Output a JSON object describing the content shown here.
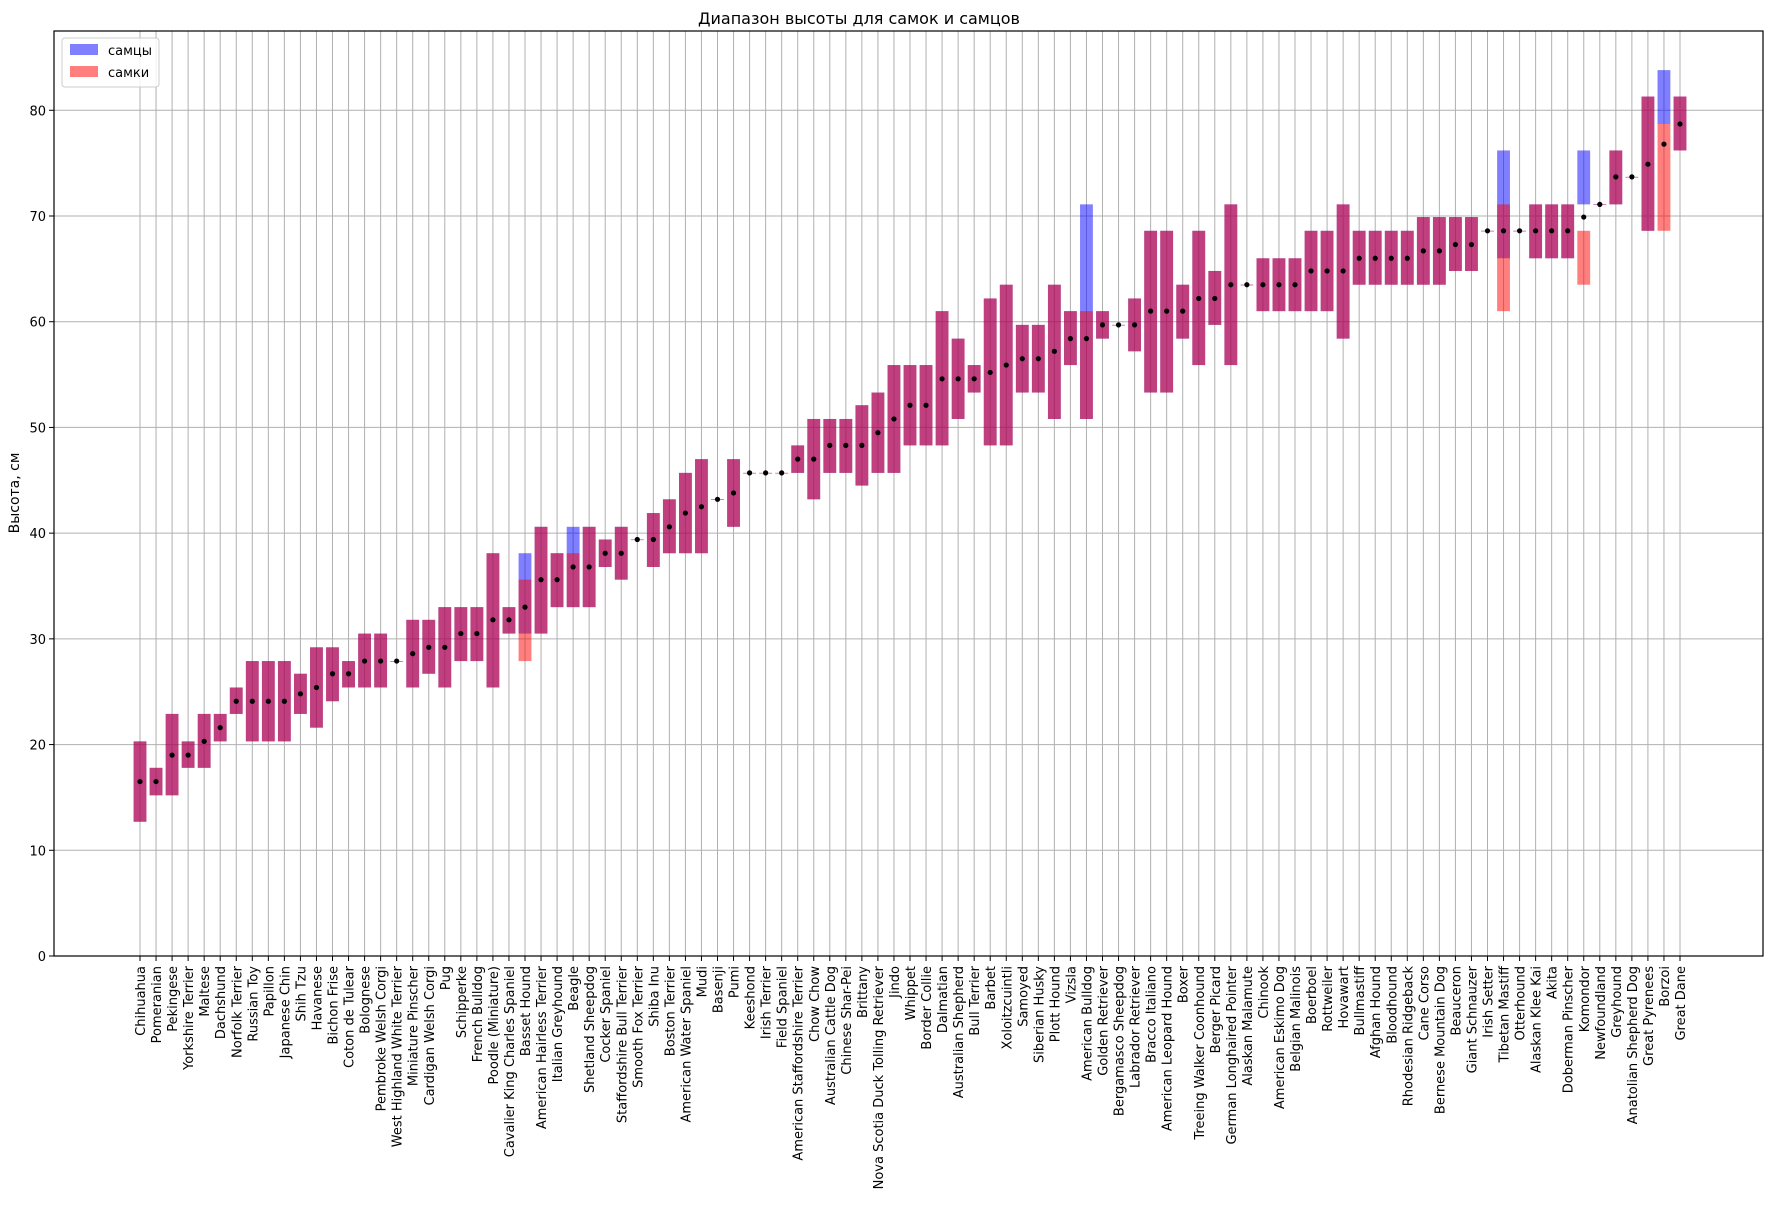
{
  "chart_data": {
    "type": "bar",
    "title": "Диапазон высоты для самок и самцов",
    "xlabel": "",
    "ylabel": "Высота, см",
    "ylim": [
      0,
      87.5
    ],
    "yticks": [
      0,
      10,
      20,
      30,
      40,
      50,
      60,
      70,
      80
    ],
    "grid": true,
    "legend_position": "top-left",
    "colors": {
      "males": "#0000ff",
      "females": "#ff0000",
      "overlap": "#b3306a",
      "mean_dot": "#000000"
    },
    "legend": [
      {
        "key": "males",
        "label": "самцы"
      },
      {
        "key": "females",
        "label": "самки"
      }
    ],
    "categories": [
      "Chihuahua",
      "Pomeranian",
      "Pekingese",
      "Yorkshire Terrier",
      "Maltese",
      "Dachshund",
      "Norfolk Terrier",
      "Russian Toy",
      "Papillon",
      "Japanese Chin",
      "Shih Tzu",
      "Havanese",
      "Bichon Frise",
      "Coton de Tulear",
      "Bolognese",
      "Pembroke Welsh Corgi",
      "West Highland White Terrier",
      "Miniature Pinscher",
      "Cardigan Welsh Corgi",
      "Pug",
      "Schipperke",
      "French Bulldog",
      "Poodle (Miniature)",
      "Cavalier King Charles Spaniel",
      "Basset Hound",
      "American Hairless Terrier",
      "Italian Greyhound",
      "Beagle",
      "Shetland Sheepdog",
      "Cocker Spaniel",
      "Staffordshire Bull Terrier",
      "Smooth Fox Terrier",
      "Shiba Inu",
      "Boston Terrier",
      "American Water Spaniel",
      "Mudi",
      "Basenji",
      "Pumi",
      "Keeshond",
      "Irish Terrier",
      "Field Spaniel",
      "American Staffordshire Terrier",
      "Chow Chow",
      "Australian Cattle Dog",
      "Chinese Shar-Pei",
      "Brittany",
      "Nova Scotia Duck Tolling Retriever",
      "Jindo",
      "Whippet",
      "Border Collie",
      "Dalmatian",
      "Australian Shepherd",
      "Bull Terrier",
      "Barbet",
      "Xoloitzcuintli",
      "Samoyed",
      "Siberian Husky",
      "Plott Hound",
      "Vizsla",
      "American Bulldog",
      "Golden Retriever",
      "Bergamasco Sheepdog",
      "Labrador Retriever",
      "Bracco Italiano",
      "American Leopard Hound",
      "Boxer",
      "Treeing Walker Coonhound",
      "Berger Picard",
      "German Longhaired Pointer",
      "Alaskan Malamute",
      "Chinook",
      "American Eskimo Dog",
      "Belgian Malinois",
      "Boerboel",
      "Rottweiler",
      "Hovawart",
      "Bullmastiff",
      "Afghan Hound",
      "Bloodhound",
      "Rhodesian Ridgeback",
      "Cane Corso",
      "Bernese Mountain Dog",
      "Beauceron",
      "Giant Schnauzer",
      "Irish Setter",
      "Tibetan Mastiff",
      "Otterhound",
      "Alaskan Klee Kai",
      "Akita",
      "Doberman Pinscher",
      "Komondor",
      "Newfoundland",
      "Greyhound",
      "Anatolian Shepherd Dog",
      "Great Pyrenees",
      "Borzoi",
      "Great Dane"
    ],
    "series": [
      {
        "name": "самцы",
        "ranges": [
          [
            12.7,
            20.3
          ],
          [
            15.2,
            17.8
          ],
          [
            15.2,
            22.9
          ],
          [
            17.8,
            20.3
          ],
          [
            17.8,
            22.9
          ],
          [
            20.3,
            22.9
          ],
          [
            22.9,
            25.4
          ],
          [
            20.3,
            27.9
          ],
          [
            20.3,
            27.9
          ],
          [
            20.3,
            27.9
          ],
          [
            22.9,
            26.7
          ],
          [
            21.6,
            29.2
          ],
          [
            24.1,
            29.2
          ],
          [
            25.4,
            27.9
          ],
          [
            25.4,
            30.5
          ],
          [
            25.4,
            30.5
          ],
          [
            27.9,
            27.9
          ],
          [
            25.4,
            31.8
          ],
          [
            26.7,
            31.8
          ],
          [
            25.4,
            33.0
          ],
          [
            27.9,
            33.0
          ],
          [
            27.9,
            33.0
          ],
          [
            25.4,
            38.1
          ],
          [
            30.5,
            33.0
          ],
          [
            30.5,
            38.1
          ],
          [
            30.5,
            40.6
          ],
          [
            33.0,
            38.1
          ],
          [
            33.0,
            40.6
          ],
          [
            33.0,
            40.6
          ],
          [
            36.8,
            39.4
          ],
          [
            35.6,
            40.6
          ],
          [
            39.4,
            39.4
          ],
          [
            36.8,
            41.9
          ],
          [
            38.1,
            43.2
          ],
          [
            38.1,
            45.7
          ],
          [
            38.1,
            47.0
          ],
          [
            43.2,
            43.2
          ],
          [
            40.6,
            47.0
          ],
          [
            45.7,
            45.7
          ],
          [
            45.7,
            45.7
          ],
          [
            45.7,
            45.7
          ],
          [
            45.7,
            48.3
          ],
          [
            43.2,
            50.8
          ],
          [
            45.7,
            50.8
          ],
          [
            45.7,
            50.8
          ],
          [
            44.5,
            52.1
          ],
          [
            45.7,
            53.3
          ],
          [
            45.7,
            55.9
          ],
          [
            48.3,
            55.9
          ],
          [
            48.3,
            55.9
          ],
          [
            48.3,
            61.0
          ],
          [
            50.8,
            58.4
          ],
          [
            53.3,
            55.9
          ],
          [
            48.3,
            62.2
          ],
          [
            48.3,
            63.5
          ],
          [
            53.3,
            59.7
          ],
          [
            53.3,
            59.7
          ],
          [
            50.8,
            63.5
          ],
          [
            55.9,
            61.0
          ],
          [
            50.8,
            71.1
          ],
          [
            58.4,
            61.0
          ],
          [
            59.7,
            59.7
          ],
          [
            57.2,
            62.2
          ],
          [
            53.3,
            68.6
          ],
          [
            53.3,
            68.6
          ],
          [
            58.4,
            63.5
          ],
          [
            55.9,
            68.6
          ],
          [
            59.7,
            64.8
          ],
          [
            55.9,
            71.1
          ],
          [
            63.5,
            63.5
          ],
          [
            61.0,
            66.0
          ],
          [
            61.0,
            66.0
          ],
          [
            61.0,
            66.0
          ],
          [
            61.0,
            68.6
          ],
          [
            61.0,
            68.6
          ],
          [
            58.4,
            71.1
          ],
          [
            63.5,
            68.6
          ],
          [
            63.5,
            68.6
          ],
          [
            63.5,
            68.6
          ],
          [
            63.5,
            68.6
          ],
          [
            63.5,
            69.9
          ],
          [
            63.5,
            69.9
          ],
          [
            64.8,
            69.9
          ],
          [
            64.8,
            69.9
          ],
          [
            68.6,
            68.6
          ],
          [
            66.0,
            76.2
          ],
          [
            68.6,
            68.6
          ],
          [
            66.0,
            71.1
          ],
          [
            66.0,
            71.1
          ],
          [
            66.0,
            71.1
          ],
          [
            71.1,
            76.2
          ],
          [
            71.1,
            71.1
          ],
          [
            71.1,
            76.2
          ],
          [
            73.7,
            73.7
          ],
          [
            68.6,
            81.3
          ],
          [
            78.7,
            83.8
          ],
          [
            76.2,
            81.3
          ]
        ]
      },
      {
        "name": "самки",
        "ranges": [
          [
            12.7,
            20.3
          ],
          [
            15.2,
            17.8
          ],
          [
            15.2,
            22.9
          ],
          [
            17.8,
            20.3
          ],
          [
            17.8,
            22.9
          ],
          [
            20.3,
            22.9
          ],
          [
            22.9,
            25.4
          ],
          [
            20.3,
            27.9
          ],
          [
            20.3,
            27.9
          ],
          [
            20.3,
            27.9
          ],
          [
            22.9,
            26.7
          ],
          [
            21.6,
            29.2
          ],
          [
            24.1,
            29.2
          ],
          [
            25.4,
            27.9
          ],
          [
            25.4,
            30.5
          ],
          [
            25.4,
            30.5
          ],
          [
            27.9,
            27.9
          ],
          [
            25.4,
            31.8
          ],
          [
            26.7,
            31.8
          ],
          [
            25.4,
            33.0
          ],
          [
            27.9,
            33.0
          ],
          [
            27.9,
            33.0
          ],
          [
            25.4,
            38.1
          ],
          [
            30.5,
            33.0
          ],
          [
            27.9,
            35.6
          ],
          [
            30.5,
            40.6
          ],
          [
            33.0,
            38.1
          ],
          [
            33.0,
            38.1
          ],
          [
            33.0,
            40.6
          ],
          [
            36.8,
            39.4
          ],
          [
            35.6,
            40.6
          ],
          [
            39.4,
            39.4
          ],
          [
            36.8,
            41.9
          ],
          [
            38.1,
            43.2
          ],
          [
            38.1,
            45.7
          ],
          [
            38.1,
            47.0
          ],
          [
            43.2,
            43.2
          ],
          [
            40.6,
            47.0
          ],
          [
            45.7,
            45.7
          ],
          [
            45.7,
            45.7
          ],
          [
            45.7,
            45.7
          ],
          [
            45.7,
            48.3
          ],
          [
            43.2,
            50.8
          ],
          [
            45.7,
            50.8
          ],
          [
            45.7,
            50.8
          ],
          [
            44.5,
            52.1
          ],
          [
            45.7,
            53.3
          ],
          [
            45.7,
            55.9
          ],
          [
            48.3,
            55.9
          ],
          [
            48.3,
            55.9
          ],
          [
            48.3,
            61.0
          ],
          [
            50.8,
            58.4
          ],
          [
            53.3,
            55.9
          ],
          [
            48.3,
            62.2
          ],
          [
            48.3,
            63.5
          ],
          [
            53.3,
            59.7
          ],
          [
            53.3,
            59.7
          ],
          [
            50.8,
            63.5
          ],
          [
            55.9,
            61.0
          ],
          [
            50.8,
            61.0
          ],
          [
            58.4,
            61.0
          ],
          [
            59.7,
            59.7
          ],
          [
            57.2,
            62.2
          ],
          [
            53.3,
            68.6
          ],
          [
            53.3,
            68.6
          ],
          [
            58.4,
            63.5
          ],
          [
            55.9,
            68.6
          ],
          [
            59.7,
            64.8
          ],
          [
            55.9,
            71.1
          ],
          [
            63.5,
            63.5
          ],
          [
            61.0,
            66.0
          ],
          [
            61.0,
            66.0
          ],
          [
            61.0,
            66.0
          ],
          [
            61.0,
            68.6
          ],
          [
            61.0,
            68.6
          ],
          [
            58.4,
            71.1
          ],
          [
            63.5,
            68.6
          ],
          [
            63.5,
            68.6
          ],
          [
            63.5,
            68.6
          ],
          [
            63.5,
            68.6
          ],
          [
            63.5,
            69.9
          ],
          [
            63.5,
            69.9
          ],
          [
            64.8,
            69.9
          ],
          [
            64.8,
            69.9
          ],
          [
            68.6,
            68.6
          ],
          [
            61.0,
            71.1
          ],
          [
            68.6,
            68.6
          ],
          [
            66.0,
            71.1
          ],
          [
            66.0,
            71.1
          ],
          [
            66.0,
            71.1
          ],
          [
            63.5,
            68.6
          ],
          [
            71.1,
            71.1
          ],
          [
            71.1,
            76.2
          ],
          [
            73.7,
            73.7
          ],
          [
            68.6,
            81.3
          ],
          [
            68.6,
            78.7
          ],
          [
            76.2,
            81.3
          ]
        ]
      }
    ],
    "means": [
      16.5,
      16.5,
      19.0,
      19.0,
      20.3,
      21.6,
      24.1,
      24.1,
      24.1,
      24.1,
      24.8,
      25.4,
      26.7,
      26.7,
      27.9,
      27.9,
      27.9,
      28.6,
      29.2,
      29.2,
      30.5,
      30.5,
      31.8,
      31.8,
      33.0,
      35.6,
      35.6,
      36.8,
      36.8,
      38.1,
      38.1,
      39.4,
      39.4,
      40.6,
      41.9,
      42.5,
      43.2,
      43.8,
      45.7,
      45.7,
      45.7,
      47.0,
      47.0,
      48.3,
      48.3,
      48.3,
      49.5,
      50.8,
      52.1,
      52.1,
      54.6,
      54.6,
      54.6,
      55.2,
      55.9,
      56.5,
      56.5,
      57.2,
      58.4,
      58.4,
      59.7,
      59.7,
      59.7,
      61.0,
      61.0,
      61.0,
      62.2,
      62.2,
      63.5,
      63.5,
      63.5,
      63.5,
      63.5,
      64.8,
      64.8,
      64.8,
      66.0,
      66.0,
      66.0,
      66.0,
      66.7,
      66.7,
      67.3,
      67.3,
      68.6,
      68.6,
      68.6,
      68.6,
      68.6,
      68.6,
      69.9,
      71.1,
      73.7,
      73.7,
      74.9,
      76.8,
      78.7
    ]
  }
}
